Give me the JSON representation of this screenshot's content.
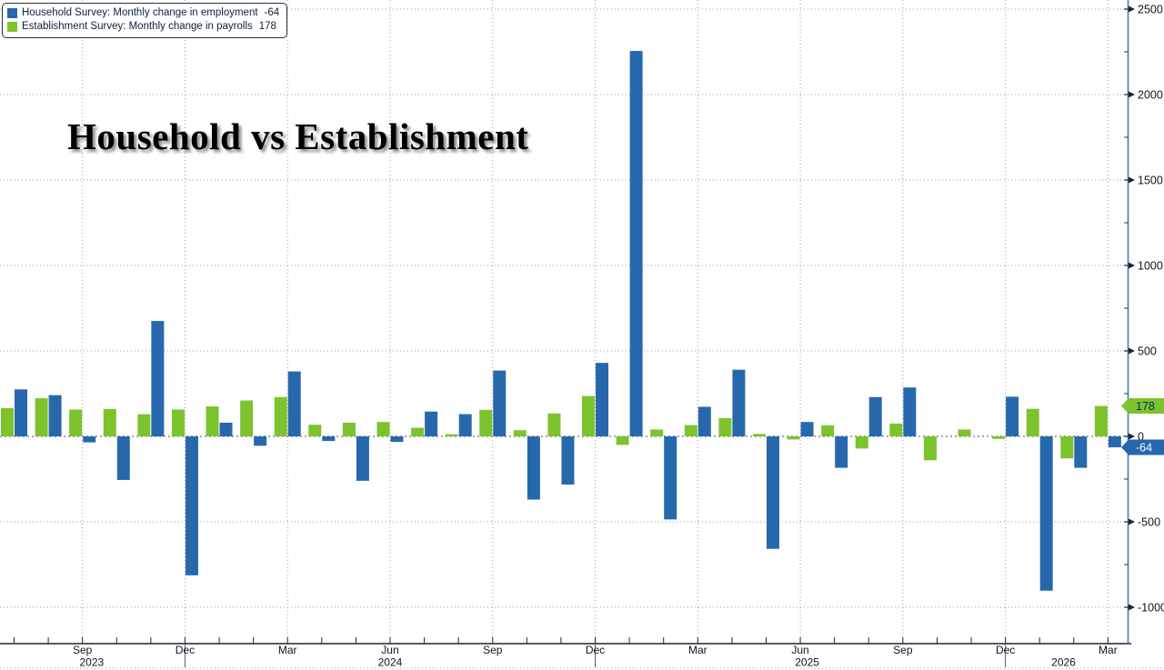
{
  "title": "Household vs Establishment",
  "legend": {
    "items": [
      {
        "id": "household",
        "label": "Household Survey: Monthly change in employment",
        "value": "-64",
        "color": "#2768ad"
      },
      {
        "id": "establishment",
        "label": "Establishment Survey: Monthly change in payrolls",
        "value": "178",
        "color": "#7cc32e"
      }
    ]
  },
  "chart_data": {
    "type": "bar",
    "title": "Household vs Establishment",
    "categories": [
      "2023-07",
      "2023-08",
      "2023-09",
      "2023-10",
      "2023-11",
      "2023-12",
      "2024-01",
      "2024-02",
      "2024-03",
      "2024-04",
      "2024-05",
      "2024-06",
      "2024-07",
      "2024-08",
      "2024-09",
      "2024-10",
      "2024-11",
      "2024-12",
      "2025-01",
      "2025-02",
      "2025-03",
      "2025-04",
      "2025-05",
      "2025-06",
      "2025-07",
      "2025-08",
      "2025-09",
      "2025-10",
      "2025-11",
      "2025-12",
      "2026-01",
      "2026-02",
      "2026-03"
    ],
    "series": [
      {
        "id": "establishment",
        "name": "Establishment Survey: Monthly change in payrolls",
        "color": "#7cc32e",
        "values": [
          165,
          223,
          157,
          160,
          130,
          157,
          175,
          210,
          230,
          68,
          80,
          84,
          50,
          12,
          155,
          36,
          134,
          236,
          -50,
          40,
          66,
          107,
          14,
          -18,
          65,
          -71,
          75,
          -140,
          40,
          -15,
          161,
          -129,
          178
        ]
      },
      {
        "id": "household",
        "name": "Household Survey: Monthly change in employment",
        "color": "#2768ad",
        "values": [
          275,
          241,
          -35,
          -255,
          675,
          -813,
          80,
          -55,
          380,
          -27,
          -260,
          -32,
          145,
          130,
          385,
          -370,
          -282,
          430,
          2255,
          -486,
          173,
          390,
          -658,
          84,
          -184,
          230,
          286,
          null,
          null,
          232,
          -903,
          -184,
          -64
        ]
      }
    ],
    "bar_order": [
      "establishment",
      "household"
    ],
    "ylim": [
      -1213,
      2553
    ],
    "y_ticks": [
      -1000,
      -500,
      0,
      500,
      1000,
      1500,
      2000,
      2500
    ],
    "y_minor_step": 250,
    "grid": "dotted",
    "axis_side": "right",
    "legend_position": "top-left",
    "x_tick_labels": [
      {
        "index": 2,
        "label": "Sep"
      },
      {
        "index": 5,
        "label": "Dec"
      },
      {
        "index": 8,
        "label": "Mar"
      },
      {
        "index": 11,
        "label": "Jun"
      },
      {
        "index": 14,
        "label": "Sep"
      },
      {
        "index": 17,
        "label": "Dec"
      },
      {
        "index": 20,
        "label": "Mar"
      },
      {
        "index": 23,
        "label": "Jun"
      },
      {
        "index": 26,
        "label": "Sep"
      },
      {
        "index": 29,
        "label": "Dec"
      },
      {
        "index": 32,
        "label": "Mar"
      }
    ],
    "year_labels": [
      {
        "index": 2.27,
        "label": "2023"
      },
      {
        "index": 11.0,
        "label": "2024"
      },
      {
        "index": 23.2,
        "label": "2025"
      },
      {
        "index": 30.7,
        "label": "2026"
      }
    ],
    "year_separator_indices": [
      5,
      17,
      29
    ],
    "latest_value_badges": [
      {
        "series": "establishment",
        "label": "178",
        "value": 178,
        "bg": "#7cc32e",
        "text_color": "#0d2a4d"
      },
      {
        "series": "household",
        "label": "-64",
        "value": -64,
        "bg": "#2768ad",
        "text_color": "#ffffff"
      }
    ]
  },
  "colors": {
    "household": "#2768ad",
    "establishment": "#7cc32e",
    "grid": "#999fa6",
    "zero_line": "#4a4f57",
    "x_axis": "#20242c",
    "y_axis_line": "#4779b3",
    "tick_text": "#10161f"
  }
}
